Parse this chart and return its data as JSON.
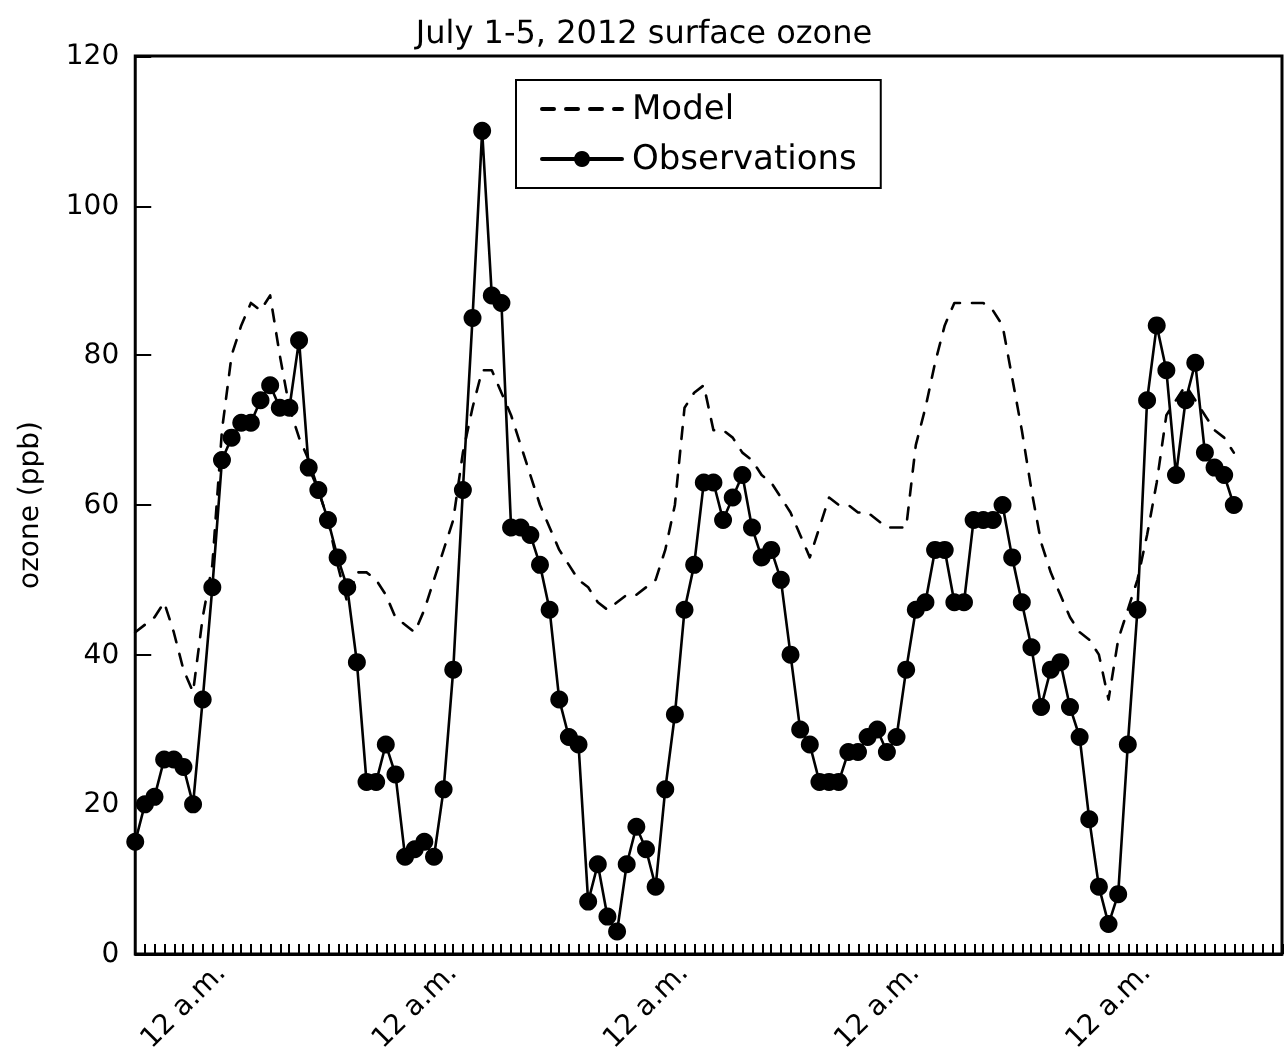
{
  "chart_data": {
    "type": "line",
    "title": "July 1-5, 2012 surface ozone",
    "ylabel": "ozone (ppb)",
    "categories": [
      null,
      null,
      null,
      null,
      null,
      "12 a.m.",
      null,
      null,
      null,
      null,
      null,
      null,
      null,
      null,
      null,
      null,
      null,
      null,
      null,
      null,
      null,
      null,
      null,
      null,
      null,
      null,
      null,
      null,
      null,
      "12 a.m.",
      null,
      null,
      null,
      null,
      null,
      null,
      null,
      null,
      null,
      null,
      null,
      null,
      null,
      null,
      null,
      null,
      null,
      null,
      null,
      null,
      null,
      null,
      null,
      "12 a.m.",
      null,
      null,
      null,
      null,
      null,
      null,
      null,
      null,
      null,
      null,
      null,
      null,
      null,
      null,
      null,
      null,
      null,
      null,
      null,
      null,
      null,
      null,
      null,
      "12 a.m.",
      null,
      null,
      null,
      null,
      null,
      null,
      null,
      null,
      null,
      null,
      null,
      null,
      null,
      null,
      null,
      null,
      null,
      null,
      null,
      null,
      null,
      null,
      null,
      "12 a.m.",
      null,
      null,
      null,
      null,
      null,
      null,
      null,
      null,
      null,
      null,
      null,
      null,
      null,
      null,
      null,
      null,
      null,
      null
    ],
    "ylim": [
      0,
      120
    ],
    "yticks": [
      0,
      20,
      40,
      60,
      80,
      100,
      120
    ],
    "legend": "top",
    "series": [
      {
        "name": "Model",
        "color": "#000000",
        "line_style": "dashed",
        "marker": "none",
        "values": [
          43,
          44,
          45,
          47,
          43,
          38,
          35,
          45,
          52,
          70,
          80,
          84,
          87,
          86,
          88,
          80,
          73,
          69,
          66,
          62,
          58,
          52,
          47,
          51,
          51,
          50,
          48,
          45,
          44,
          43,
          46,
          50,
          54,
          58,
          67,
          73,
          78,
          78,
          75,
          72,
          68,
          64,
          60,
          57,
          54,
          52,
          50,
          49,
          47,
          46,
          47,
          48,
          48,
          49,
          50,
          54,
          60,
          73,
          75,
          76,
          70,
          70,
          69,
          67,
          66,
          64,
          63,
          61,
          59,
          56,
          53,
          57,
          61,
          60,
          60,
          59,
          59,
          58,
          57,
          57,
          57,
          68,
          73,
          79,
          84,
          87,
          87,
          87,
          87,
          86,
          84,
          77,
          70,
          62,
          55,
          51,
          48,
          45,
          43,
          42,
          40,
          34,
          42,
          46,
          50,
          56,
          63,
          72,
          74,
          76,
          74,
          72,
          70,
          69,
          67,
          null,
          null,
          null,
          null,
          null
        ]
      },
      {
        "name": "Observations",
        "color": "#000000",
        "line_style": "solid",
        "marker": "circle",
        "values": [
          15,
          20,
          21,
          26,
          26,
          25,
          20,
          34,
          49,
          66,
          69,
          71,
          71,
          74,
          76,
          73,
          73,
          82,
          65,
          62,
          58,
          53,
          49,
          39,
          23,
          23,
          28,
          24,
          13,
          14,
          15,
          13,
          22,
          38,
          62,
          85,
          110,
          88,
          87,
          57,
          57,
          56,
          52,
          46,
          34,
          29,
          28,
          7,
          12,
          5,
          3,
          12,
          17,
          14,
          9,
          22,
          32,
          46,
          52,
          63,
          63,
          58,
          61,
          64,
          57,
          53,
          54,
          50,
          40,
          30,
          28,
          23,
          23,
          23,
          27,
          27,
          29,
          30,
          27,
          29,
          38,
          46,
          47,
          54,
          54,
          47,
          47,
          58,
          58,
          58,
          60,
          53,
          47,
          41,
          33,
          38,
          39,
          33,
          29,
          18,
          9,
          4,
          8,
          28,
          46,
          74,
          84,
          78,
          64,
          74,
          79,
          67,
          65,
          64,
          60,
          null,
          null,
          null,
          null,
          null
        ]
      }
    ]
  }
}
